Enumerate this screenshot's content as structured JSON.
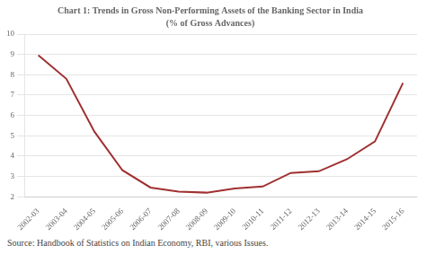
{
  "chart_data": {
    "type": "line",
    "title": "Chart 1: Trends in Gross Non-Performing Assets of the Banking Sector in India",
    "subtitle": "(% of Gross Advances)",
    "source": "Source: Handbook of Statistics on Indian Economy, RBI, various Issues.",
    "categories": [
      "2002-03",
      "2003-04",
      "2004-05",
      "2005-06",
      "2006-07",
      "2007-08",
      "2008-09",
      "2009-10",
      "2010-11",
      "2011-12",
      "2012-13",
      "2013-14",
      "2014-15",
      "2015-16"
    ],
    "values": [
      8.96,
      7.8,
      5.2,
      3.3,
      2.45,
      2.25,
      2.2,
      2.4,
      2.5,
      3.17,
      3.25,
      3.84,
      4.72,
      7.6
    ],
    "color": "#a03030",
    "ylim": [
      2,
      10
    ],
    "yticks": [
      2,
      3,
      4,
      5,
      6,
      7,
      8,
      9,
      10
    ],
    "grid": "y"
  }
}
